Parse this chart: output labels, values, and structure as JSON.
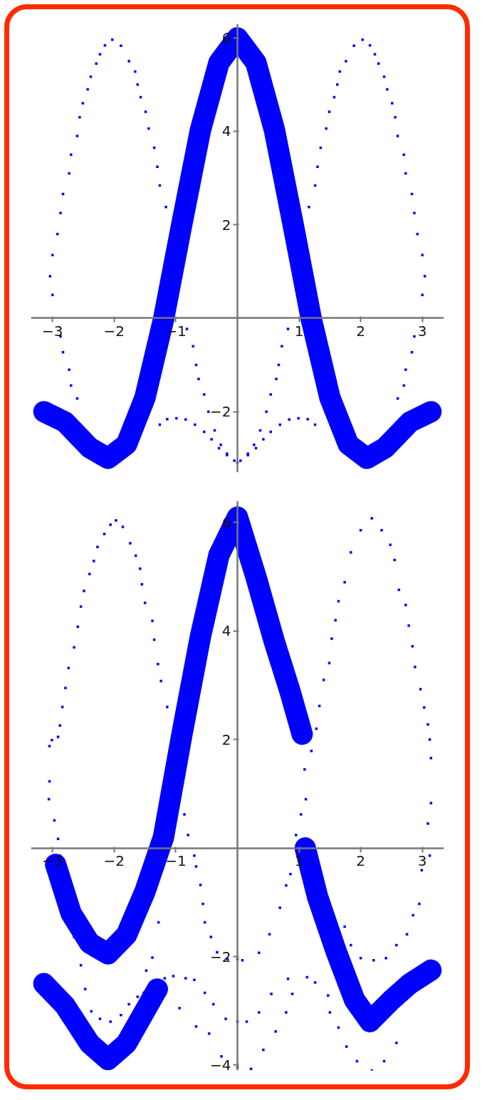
{
  "chart_data": [
    {
      "type": "line",
      "xlim": [
        -3.35,
        3.35
      ],
      "ylim": [
        -3.3,
        6.3
      ],
      "xticks": [
        -3,
        -2,
        -1,
        1,
        2,
        3
      ],
      "yticks": [
        -2,
        2,
        4,
        6
      ],
      "series": [
        {
          "color": "#0000ff",
          "x": [
            -3.14,
            -2.8,
            -2.4,
            -2.1,
            -1.8,
            -1.5,
            -1.2,
            -0.9,
            -0.6,
            -0.3,
            0,
            0.3,
            0.6,
            0.9,
            1.2,
            1.5,
            1.8,
            2.1,
            2.4,
            2.8,
            3.14
          ],
          "values": [
            -2,
            -2.22,
            -2.77,
            -3,
            -2.7,
            -1.7,
            -0.03,
            2.03,
            4.03,
            5.47,
            6,
            5.47,
            4.03,
            2.03,
            -0.03,
            -1.7,
            -2.7,
            -3,
            -2.77,
            -2.22,
            -2
          ]
        },
        {
          "type": "scatter",
          "marker": "square",
          "color": "#0000ff",
          "x": [
            -3.04,
            -3.0,
            -2.92,
            -2.87,
            -2.83,
            -2.73,
            -2.7,
            -2.6,
            -2.56,
            -2.51,
            -2.43,
            -2.38,
            -2.29,
            -2.23,
            -2.15,
            -2.03,
            -1.89,
            -1.76,
            -1.66,
            -1.62,
            -1.57,
            -1.49,
            -1.44,
            -1.35,
            -1.3,
            -1.26,
            -1.16,
            -3.0,
            -2.87,
            -2.83,
            -2.73,
            -2.7,
            -2.6,
            -0.82,
            -0.72,
            -0.67,
            -0.63,
            -0.54,
            -0.47,
            -0.37,
            -0.27,
            -0.17,
            -0.05,
            -1.26,
            -1.14,
            -0.99,
            -0.84,
            -0.69,
            -0.54,
            -0.42,
            -0.3,
            -0.17,
            0,
            3.04,
            3.0,
            2.92,
            2.87,
            2.83,
            2.73,
            2.7,
            2.6,
            2.56,
            2.51,
            2.43,
            2.38,
            2.29,
            2.23,
            2.15,
            2.03,
            1.89,
            1.76,
            1.66,
            1.62,
            1.57,
            1.49,
            1.44,
            1.35,
            1.3,
            1.26,
            1.16,
            3.0,
            2.87,
            2.83,
            2.73,
            2.7,
            2.6,
            0.82,
            0.72,
            0.67,
            0.63,
            0.54,
            0.47,
            0.37,
            0.27,
            0.17,
            0.05,
            1.26,
            1.14,
            0.99,
            0.84,
            0.69,
            0.54,
            0.42,
            0.3,
            0.17
          ],
          "values": [
            0.9,
            1.35,
            1.8,
            2.25,
            2.66,
            3.1,
            3.5,
            3.9,
            4.3,
            4.6,
            4.9,
            5.17,
            5.45,
            5.65,
            5.84,
            5.96,
            5.83,
            5.5,
            5.28,
            5.0,
            4.73,
            4.42,
            4.06,
            3.65,
            3.24,
            2.84,
            2.38,
            0.5,
            -0.39,
            -0.73,
            -1.1,
            -1.44,
            -1.72,
            -0.23,
            -0.6,
            -1.0,
            -1.3,
            -1.63,
            -2.0,
            -2.4,
            -2.71,
            -2.9,
            -3.05,
            -2.28,
            -2.16,
            -2.14,
            -2.17,
            -2.28,
            -2.43,
            -2.59,
            -2.78,
            -2.93,
            -3.09,
            0.9,
            1.35,
            1.8,
            2.25,
            2.66,
            3.1,
            3.5,
            3.9,
            4.3,
            4.6,
            4.9,
            5.17,
            5.45,
            5.65,
            5.84,
            5.96,
            5.83,
            5.5,
            5.28,
            5.0,
            4.73,
            4.42,
            4.06,
            3.65,
            3.24,
            2.84,
            2.38,
            0.5,
            -0.39,
            -0.73,
            -1.1,
            -1.44,
            -1.72,
            -0.23,
            -0.6,
            -1.0,
            -1.3,
            -1.63,
            -2.0,
            -2.4,
            -2.71,
            -2.9,
            -3.05,
            -2.28,
            -2.16,
            -2.14,
            -2.17,
            -2.28,
            -2.43,
            -2.59,
            -2.78,
            -2.93
          ]
        }
      ]
    },
    {
      "type": "line",
      "xlim": [
        -3.35,
        3.35
      ],
      "ylim": [
        -4.1,
        6.4
      ],
      "xticks": [
        -3,
        -2,
        -1,
        1,
        2,
        3
      ],
      "yticks": [
        -4,
        -2,
        2,
        4,
        6
      ],
      "series": [
        {
          "color": "#0000ff",
          "x": [
            -3.14,
            -2.8,
            -2.4,
            -2.1,
            -1.8,
            -1.5,
            -1.3,
            null,
            -2.95,
            -2.7,
            -2.4,
            -2.1,
            -1.8,
            -1.5,
            -1.2,
            -0.9,
            -0.6,
            -0.3,
            0,
            0.3,
            0.6,
            0.85,
            1.05,
            null,
            1.1,
            1.3,
            1.6,
            1.9,
            2.15,
            2.5,
            2.8,
            3.14
          ],
          "values": [
            -2.5,
            -2.9,
            -3.6,
            -3.9,
            -3.6,
            -3.0,
            -2.6,
            null,
            -0.3,
            -1.2,
            -1.75,
            -1.95,
            -1.6,
            -0.8,
            0.2,
            2.1,
            3.9,
            5.4,
            6.1,
            5.0,
            3.8,
            2.9,
            2.1,
            null,
            0.0,
            -0.9,
            -1.9,
            -2.8,
            -3.2,
            -2.8,
            -2.5,
            -2.25
          ]
        },
        {
          "type": "scatter",
          "marker": "square",
          "color": "#0000ff",
          "x": [
            -3.05,
            -3.01,
            -2.91,
            -2.88,
            -2.84,
            -2.79,
            -2.74,
            -2.65,
            -2.59,
            -2.54,
            -2.49,
            -2.4,
            -2.33,
            -2.27,
            -2.16,
            -2.06,
            -1.97,
            -1.86,
            -1.74,
            -1.65,
            -1.58,
            -1.55,
            -1.5,
            -1.38,
            -1.35,
            -1.29,
            -1.24,
            -1.14,
            -0.86,
            -0.8,
            -0.7,
            -0.67,
            -0.6,
            -0.56,
            -0.53,
            -0.43,
            -0.33,
            -0.16,
            0,
            -3.05,
            -3.06,
            -2.97,
            -2.91,
            -2.88,
            -2.65,
            -2.54,
            -2.47,
            -2.37,
            -2.23,
            -2.06,
            -1.89,
            -1.76,
            -1.62,
            -1.52,
            -1.18,
            -1.04,
            -0.84,
            -0.7,
            -0.53,
            -0.39,
            -0.19,
            0,
            -1.28,
            -1.38,
            -1.48,
            -0.94,
            -0.67,
            -0.46,
            -0.26,
            0,
            2.0,
            1.84,
            1.74,
            1.64,
            1.59,
            1.53,
            1.49,
            1.4,
            1.33,
            1.28,
            1.2,
            1.09,
            1.11,
            1.03,
            0.95,
            2.18,
            2.34,
            2.48,
            2.55,
            2.62,
            2.73,
            2.78,
            2.84,
            2.88,
            2.97,
            3.03,
            3.09,
            3.12,
            3.14,
            3.14,
            3.09,
            3.12,
            2.99,
            2.95,
            2.85,
            2.75,
            2.58,
            2.41,
            2.21,
            2.0,
            1.84,
            1.74,
            2.58,
            2.38,
            2.18,
            1.94,
            1.77,
            1.64,
            1.5,
            0.08,
            0.35,
            0.52,
            0.69,
            0.79,
            0.86,
            0.15,
            0.35,
            0.55,
            0.82,
            1.13,
            1.26,
            1.47,
            0.22,
            0.42,
            0.62,
            0.79,
            0.89
          ],
          "values": [
            1.88,
            1.99,
            2.05,
            2.26,
            2.6,
            2.95,
            3.32,
            3.7,
            4.08,
            4.45,
            4.74,
            5.05,
            5.29,
            5.55,
            5.79,
            5.96,
            6.04,
            5.92,
            5.62,
            5.39,
            5.15,
            4.86,
            4.52,
            4.19,
            3.84,
            3.39,
            3.08,
            2.6,
            0.62,
            0.24,
            -0.14,
            -0.34,
            -0.68,
            -1.03,
            -1.37,
            -1.64,
            -1.92,
            -2.05,
            -2.05,
            1.23,
            0.9,
            0.51,
            0.17,
            -0.14,
            -1.64,
            -2.16,
            -2.6,
            -3.01,
            -3.15,
            -3.2,
            -3.08,
            -2.88,
            -2.74,
            -2.67,
            -2.4,
            -2.36,
            -2.4,
            -2.43,
            -2.67,
            -2.88,
            -3.15,
            -3.2,
            -1.37,
            -2.02,
            -2.26,
            -2.95,
            -3.29,
            -3.42,
            -3.84,
            -4.04,
            5.86,
            5.45,
            4.9,
            4.55,
            4.2,
            3.86,
            3.41,
            3.1,
            2.62,
            2.2,
            1.79,
            1.45,
            0.9,
            0.62,
            0.24,
            6.08,
            5.86,
            5.59,
            5.31,
            4.76,
            4.48,
            4.1,
            3.72,
            3.34,
            2.93,
            2.59,
            2.28,
            2.0,
            1.66,
            0.83,
            0.45,
            -0.14,
            -0.41,
            -1.03,
            -1.24,
            -1.59,
            -1.79,
            -2.03,
            -2.07,
            -2.03,
            -1.79,
            -1.45,
            -3.59,
            -3.93,
            -4.1,
            -3.93,
            -3.66,
            -3.31,
            -3.03,
            -2.07,
            -1.93,
            -1.59,
            -1.1,
            -0.69,
            -0.48,
            -3.2,
            -3.03,
            -2.69,
            -2.41,
            -2.38,
            -2.48,
            -2.72,
            -4.07,
            -3.72,
            -3.38,
            -3.03,
            -2.69
          ]
        }
      ]
    }
  ]
}
